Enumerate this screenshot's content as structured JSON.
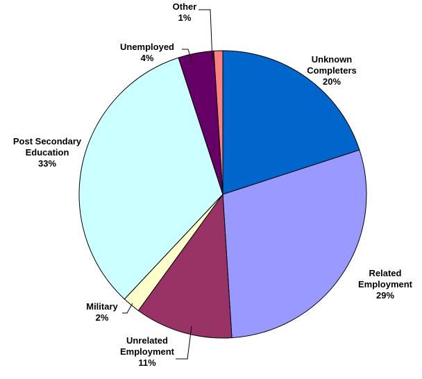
{
  "chart_data": {
    "type": "pie",
    "title": "",
    "series": [
      {
        "values": [
          20,
          29,
          11,
          2,
          33,
          4,
          1
        ],
        "slices": [
          {
            "label_lines": [
              "Unknown",
              "Completers"
            ],
            "value": 20,
            "value_label": "20%",
            "color": "#0066CC"
          },
          {
            "label_lines": [
              "Related",
              "Employment"
            ],
            "value": 29,
            "value_label": "29%",
            "color": "#9999FF"
          },
          {
            "label_lines": [
              "Unrelated",
              "Employment"
            ],
            "value": 11,
            "value_label": "11%",
            "color": "#993366"
          },
          {
            "label_lines": [
              "Military"
            ],
            "value": 2,
            "value_label": "2%",
            "color": "#FFFFCC"
          },
          {
            "label_lines": [
              "Post Secondary",
              "Education"
            ],
            "value": 33,
            "value_label": "33%",
            "color": "#CCFFFF"
          },
          {
            "label_lines": [
              "Unemployed"
            ],
            "value": 4,
            "value_label": "4%",
            "color": "#660066"
          },
          {
            "label_lines": [
              "Other"
            ],
            "value": 1,
            "value_label": "1%",
            "color": "#FF8080"
          }
        ]
      }
    ],
    "legend": "none",
    "start": "12 o'clock",
    "direction": "clockwise"
  }
}
